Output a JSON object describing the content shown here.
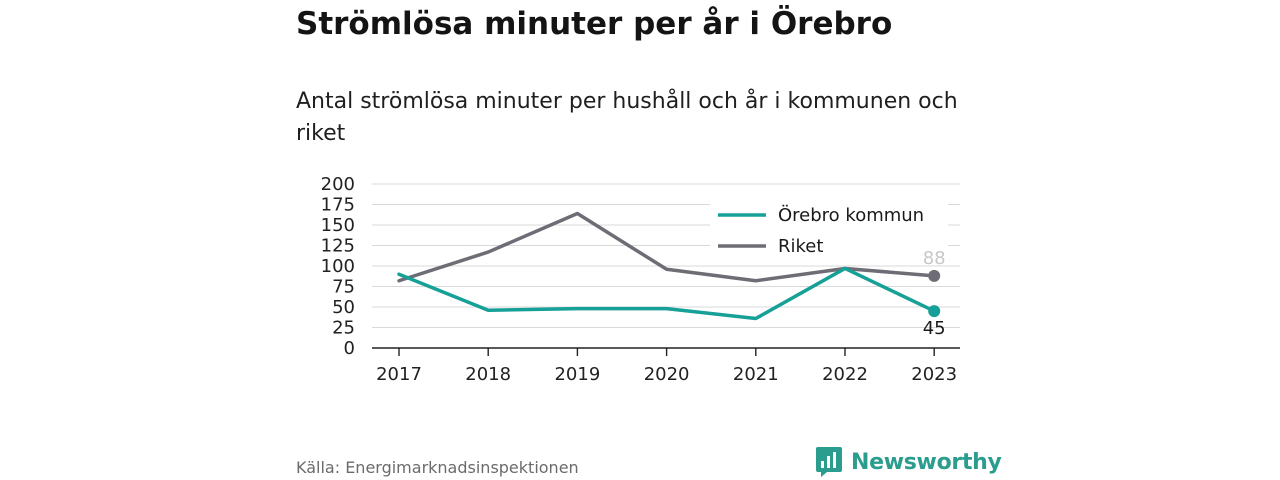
{
  "header": {
    "title": "Strömlösa minuter per år i Örebro",
    "subtitle": "Antal strömlösa minuter per hushåll och år i kommunen och riket"
  },
  "footer": {
    "source": "Källa: Energimarknadsinspektionen",
    "brand": "Newsworthy"
  },
  "colors": {
    "orebro": "#17a097",
    "riket": "#6e6d75",
    "riket_label": "#c7c7c7",
    "grid": "#d9d9d9",
    "axis": "#222222",
    "brand": "#2a9d8f"
  },
  "chart_data": {
    "type": "line",
    "x": [
      "2017",
      "2018",
      "2019",
      "2020",
      "2021",
      "2022",
      "2023"
    ],
    "series": [
      {
        "name": "Örebro kommun",
        "values": [
          90,
          46,
          48,
          48,
          36,
          97,
          45
        ],
        "end_label": "45"
      },
      {
        "name": "Riket",
        "values": [
          82,
          117,
          164,
          96,
          82,
          97,
          88
        ],
        "end_label": "88"
      }
    ],
    "ylim": [
      0,
      200
    ],
    "yticks": [
      "0",
      "25",
      "50",
      "75",
      "100",
      "125",
      "150",
      "175",
      "200"
    ],
    "grid": true,
    "legend_position": "top-right",
    "title": "Strömlösa minuter per år i Örebro",
    "xlabel": "",
    "ylabel": ""
  }
}
